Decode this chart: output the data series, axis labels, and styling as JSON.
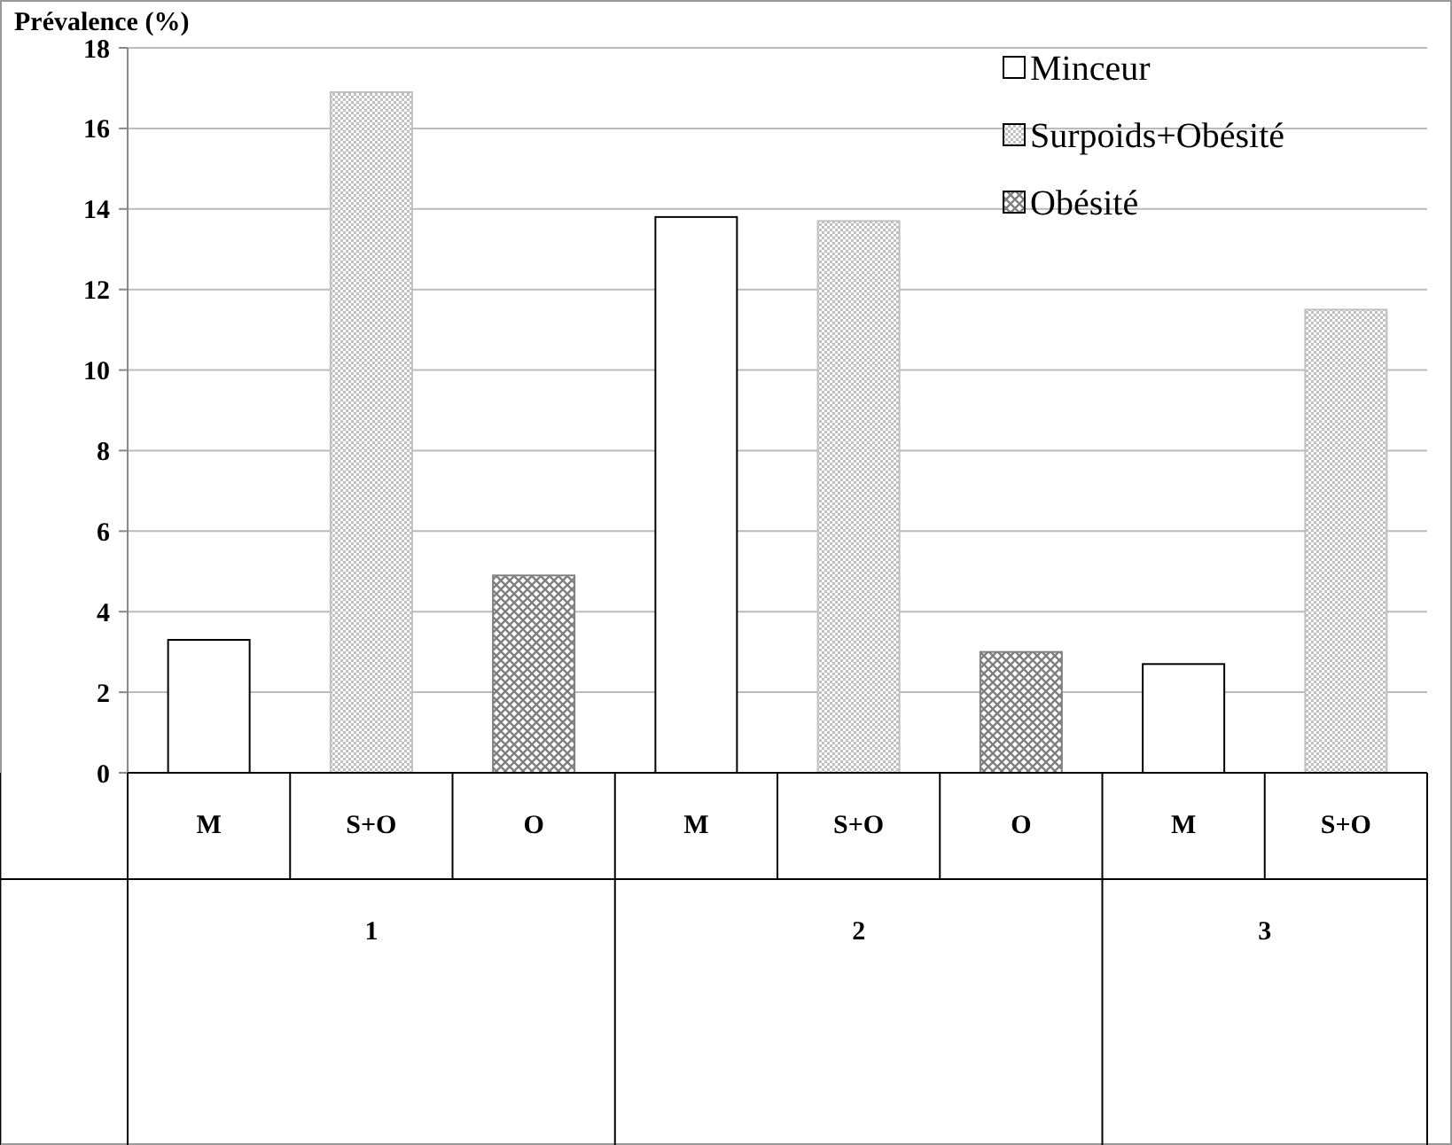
{
  "chart_data": {
    "type": "bar",
    "ylabel": "Prévalence (%)",
    "categories": [
      "M",
      "S+O",
      "O",
      "M",
      "S+O",
      "O",
      "M",
      "S+O"
    ],
    "series": [
      {
        "name": "Minceur",
        "color": "#ffffff",
        "values": [
          3.3,
          null,
          null,
          13.8,
          null,
          null,
          2.7,
          null
        ]
      },
      {
        "name": "Surpoids+Obésité",
        "color": "#c0c0c0",
        "values": [
          null,
          16.9,
          null,
          null,
          13.7,
          null,
          null,
          11.5
        ]
      },
      {
        "name": "Obésité",
        "color": "#808080",
        "values": [
          null,
          null,
          4.9,
          null,
          null,
          3.0,
          null,
          null
        ]
      }
    ],
    "annotations": [
      "1",
      "2",
      "3"
    ],
    "ylim": [
      0,
      18
    ],
    "yticks": [
      0,
      2,
      4,
      6,
      8,
      10,
      12,
      14,
      16,
      18
    ],
    "grid": "y",
    "legend": "top right"
  }
}
